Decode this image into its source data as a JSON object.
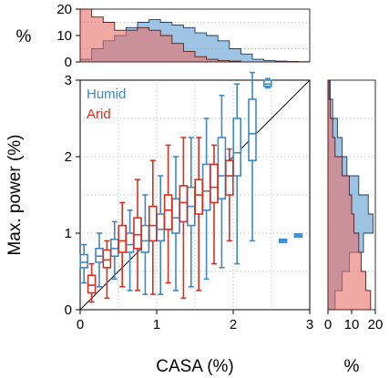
{
  "chart_data": {
    "type": "box",
    "layout": "scatter-with-marginal-histograms",
    "xlabel": "CASA (%)",
    "ylabel": "Max. power (%)",
    "xlim": [
      0,
      3
    ],
    "ylim": [
      0,
      3
    ],
    "xticks": [
      "0",
      "1",
      "2",
      "3"
    ],
    "yticks": [
      "0",
      "1",
      "2",
      "3"
    ],
    "grid": "dotted",
    "identity_line": true,
    "legend": {
      "placement": "top-left",
      "entries": [
        "Humid",
        "Arid"
      ]
    },
    "colors": {
      "Humid": "#3f88c5",
      "Arid": "#d7301f"
    },
    "series": [
      {
        "name": "Humid",
        "boxes": [
          {
            "x": 0.05,
            "wlo": 0.35,
            "q1": 0.55,
            "med": 0.62,
            "q3": 0.72,
            "whi": 0.85
          },
          {
            "x": 0.25,
            "wlo": 0.3,
            "q1": 0.62,
            "med": 0.7,
            "q3": 0.8,
            "whi": 1.0
          },
          {
            "x": 0.45,
            "wlo": 0.4,
            "q1": 0.7,
            "med": 0.8,
            "q3": 0.92,
            "whi": 1.15
          },
          {
            "x": 0.65,
            "wlo": 0.25,
            "q1": 0.75,
            "med": 0.85,
            "q3": 1.0,
            "whi": 1.3
          },
          {
            "x": 0.85,
            "wlo": 0.2,
            "q1": 0.75,
            "med": 0.9,
            "q3": 1.1,
            "whi": 1.5
          },
          {
            "x": 1.05,
            "wlo": 0.2,
            "q1": 0.9,
            "med": 1.05,
            "q3": 1.25,
            "whi": 1.75
          },
          {
            "x": 1.25,
            "wlo": 0.25,
            "q1": 1.0,
            "med": 1.2,
            "q3": 1.45,
            "whi": 2.0
          },
          {
            "x": 1.45,
            "wlo": 0.3,
            "q1": 1.1,
            "med": 1.35,
            "q3": 1.6,
            "whi": 2.25
          },
          {
            "x": 1.65,
            "wlo": 0.4,
            "q1": 1.3,
            "med": 1.55,
            "q3": 1.9,
            "whi": 2.5
          },
          {
            "x": 1.85,
            "wlo": 0.55,
            "q1": 1.45,
            "med": 1.75,
            "q3": 2.25,
            "whi": 2.8
          },
          {
            "x": 2.05,
            "wlo": 0.6,
            "q1": 1.75,
            "med": 2.05,
            "q3": 2.5,
            "whi": 2.95
          },
          {
            "x": 2.25,
            "wlo": 0.9,
            "q1": 1.95,
            "med": 2.3,
            "q3": 2.75,
            "whi": 3.1
          },
          {
            "x": 2.45,
            "wlo": 2.9,
            "q1": 2.92,
            "med": 2.95,
            "q3": 3.0,
            "whi": 3.02
          },
          {
            "x": 2.65,
            "wlo": 0.88,
            "q1": 0.88,
            "med": 0.9,
            "q3": 0.92,
            "whi": 0.92
          },
          {
            "x": 2.85,
            "wlo": 0.95,
            "q1": 0.95,
            "med": 0.97,
            "q3": 0.99,
            "whi": 0.99
          }
        ]
      },
      {
        "name": "Arid",
        "boxes": [
          {
            "x": 0.15,
            "wlo": 0.1,
            "q1": 0.22,
            "med": 0.32,
            "q3": 0.45,
            "whi": 0.6
          },
          {
            "x": 0.35,
            "wlo": 0.15,
            "q1": 0.55,
            "med": 0.65,
            "q3": 0.78,
            "whi": 0.9
          },
          {
            "x": 0.55,
            "wlo": 0.3,
            "q1": 0.75,
            "med": 0.9,
            "q3": 1.1,
            "whi": 1.4
          },
          {
            "x": 0.75,
            "wlo": 0.25,
            "q1": 0.8,
            "med": 0.98,
            "q3": 1.2,
            "whi": 1.7
          },
          {
            "x": 0.95,
            "wlo": 0.2,
            "q1": 0.9,
            "med": 1.1,
            "q3": 1.35,
            "whi": 1.95
          },
          {
            "x": 1.15,
            "wlo": 0.35,
            "q1": 1.05,
            "med": 1.3,
            "q3": 1.5,
            "whi": 2.15
          },
          {
            "x": 1.35,
            "wlo": 0.15,
            "q1": 1.15,
            "med": 1.4,
            "q3": 1.62,
            "whi": 2.25
          },
          {
            "x": 1.55,
            "wlo": 0.25,
            "q1": 1.25,
            "med": 1.5,
            "q3": 1.7,
            "whi": 2.25
          },
          {
            "x": 1.75,
            "wlo": 0.6,
            "q1": 1.4,
            "med": 1.6,
            "q3": 1.9,
            "whi": 2.15
          },
          {
            "x": 1.95,
            "wlo": 0.9,
            "q1": 1.5,
            "med": 1.75,
            "q3": 1.95,
            "whi": 2.1
          }
        ]
      }
    ],
    "top_histogram": {
      "ylabel": "%",
      "yticks": [
        "0",
        "10",
        "20"
      ],
      "ylim": [
        0,
        20
      ],
      "bin_edges": [
        0,
        0.15,
        0.3,
        0.45,
        0.6,
        0.75,
        0.9,
        1.05,
        1.2,
        1.35,
        1.5,
        1.65,
        1.8,
        1.95,
        2.1,
        2.25,
        2.4,
        2.55,
        2.7,
        2.85,
        3.0
      ],
      "Humid": [
        1,
        5,
        8,
        10,
        13,
        15,
        16,
        15,
        14,
        13,
        11,
        10,
        8,
        5,
        3,
        1,
        0.5,
        0.3,
        0.2,
        0.1
      ],
      "Arid": [
        20,
        17,
        15,
        12,
        12,
        13,
        12,
        10,
        7,
        4,
        2,
        1,
        0.5,
        0.3,
        0,
        0,
        0,
        0,
        0,
        0
      ]
    },
    "right_histogram": {
      "xlabel": "%",
      "xticks": [
        "0",
        "10",
        "20"
      ],
      "xlim": [
        0,
        20
      ],
      "bin_edges": [
        0,
        0.25,
        0.5,
        0.75,
        1.0,
        1.25,
        1.5,
        1.75,
        2.0,
        2.25,
        2.5,
        2.75,
        3.0
      ],
      "Humid": [
        3,
        6,
        9,
        15,
        19,
        17,
        13,
        8,
        6,
        4,
        2,
        1
      ],
      "Arid": [
        18,
        16,
        14,
        13,
        11,
        10,
        9,
        6,
        3,
        2,
        1,
        0.5
      ]
    }
  }
}
